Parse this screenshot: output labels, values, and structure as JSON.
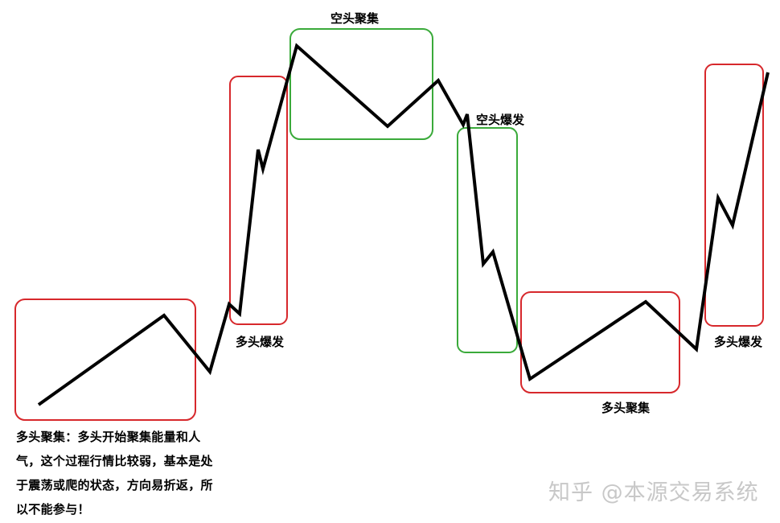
{
  "labels": {
    "short_gather": "空头聚集",
    "short_burst": "空头爆发",
    "long_burst_1": "多头爆发",
    "long_burst_2": "多头爆发",
    "long_gather": "多头聚集"
  },
  "note": "多头聚集：多头开始聚集能量和人气，这个过程行情比较弱，基本是处于震荡或爬的状态，方向易折返，所以不能参与！",
  "watermark": "知乎 @本源交易系统",
  "colors": {
    "line": "#000000",
    "long_box": "#d7282c",
    "short_box": "#3aaa3a",
    "watermark": "#c8c8c8"
  }
}
